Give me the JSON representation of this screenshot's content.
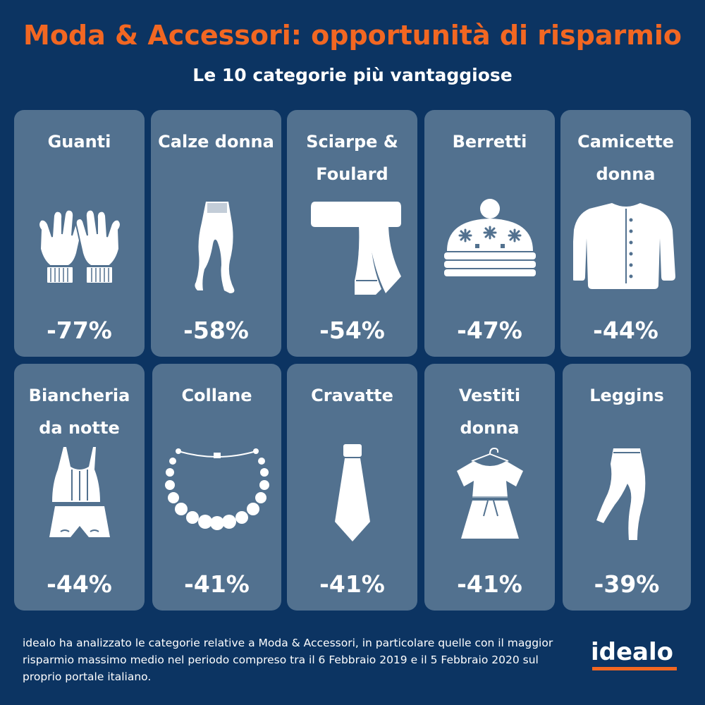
{
  "title": "Moda & Accessori: opportunità di risparmio",
  "subtitle": "Le 10 categorie più vantaggiose",
  "categories": [
    {
      "label": "Guanti",
      "value": "-77%",
      "icon": "gloves-icon"
    },
    {
      "label": "Calze donna",
      "value": "-58%",
      "icon": "tights-icon"
    },
    {
      "label": "Sciarpe & Foulard",
      "value": "-54%",
      "icon": "scarf-icon"
    },
    {
      "label": "Berretti",
      "value": "-47%",
      "icon": "beanie-icon"
    },
    {
      "label": "Camicette donna",
      "value": "-44%",
      "icon": "cardigan-icon"
    },
    {
      "label": "Biancheria da notte",
      "value": "-44%",
      "icon": "nightwear-icon"
    },
    {
      "label": "Collane",
      "value": "-41%",
      "icon": "necklace-icon"
    },
    {
      "label": "Cravatte",
      "value": "-41%",
      "icon": "tie-icon"
    },
    {
      "label": "Vestiti donna",
      "value": "-41%",
      "icon": "dress-icon"
    },
    {
      "label": "Leggins",
      "value": "-39%",
      "icon": "leggings-icon"
    }
  ],
  "footer": "idealo ha analizzato le categorie relative a Moda & Accessori, in particolare quelle con il maggior risparmio massimo medio nel periodo compreso tra il 6 Febbraio 2019 e il 5 Febbraio 2020 sul proprio portale italiano.",
  "logo": "idealo",
  "colors": {
    "background": "#0c3462",
    "card": "#52718f",
    "accent": "#f26722",
    "text": "#ffffff"
  }
}
